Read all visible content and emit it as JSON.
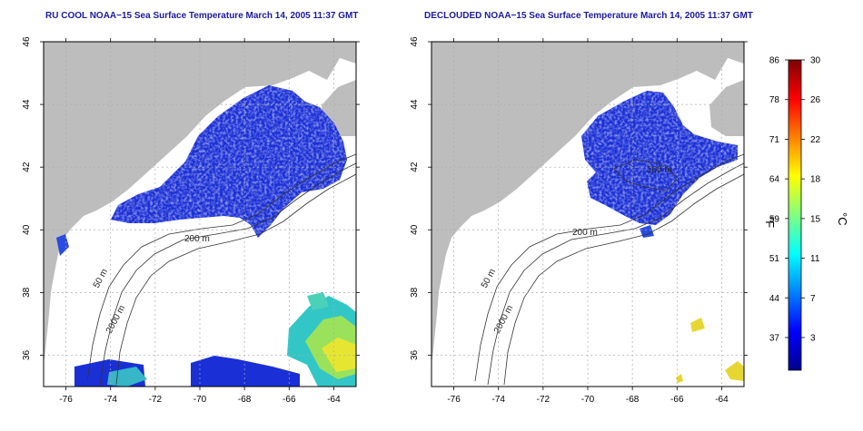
{
  "panels": [
    {
      "title": "RU COOL NOAA−15 Sea Surface Temperature March 14, 2005 11:37 GMT",
      "contour_labels": [
        "200 m",
        "50 m",
        "2000 m"
      ]
    },
    {
      "title": "DECLOUDED NOAA−15 Sea Surface Temperature March 14, 2005 11:37 GMT",
      "contour_labels": [
        "200 m",
        "100 m",
        "50 m",
        "2000 m"
      ]
    }
  ],
  "colorbar": {
    "fahrenheit_label": "°F",
    "celsius_label": "°C",
    "fahrenheit_ticks": [
      "86",
      "78",
      "71",
      "64",
      "59",
      "51",
      "44",
      "37"
    ],
    "celsius_ticks": [
      "30",
      "26",
      "22",
      "18",
      "15",
      "11",
      "7",
      "3"
    ],
    "colors": [
      "#00008f",
      "#0000ff",
      "#0080ff",
      "#00ffff",
      "#80ff80",
      "#ffff00",
      "#ff8000",
      "#ff0000",
      "#800000"
    ]
  },
  "colors": {
    "land": "#bdbdbd",
    "ocean_clear": "#ffffff",
    "sst_cold": "#1a2fd6",
    "title": "#1a1aa0"
  },
  "chart_data": [
    {
      "type": "heatmap",
      "title": "RU COOL NOAA−15 Sea Surface Temperature March 14, 2005 11:37 GMT",
      "x_ticks": [
        "-76",
        "-74",
        "-72",
        "-70",
        "-68",
        "-66",
        "-64"
      ],
      "y_ticks": [
        "36",
        "38",
        "40",
        "42",
        "44",
        "46"
      ],
      "xlim": [
        -77,
        -63
      ],
      "ylim": [
        35,
        46
      ],
      "grid": true,
      "units": [
        "°F",
        "°C"
      ]
    },
    {
      "type": "heatmap",
      "title": "DECLOUDED NOAA−15 Sea Surface Temperature March 14, 2005 11:37 GMT",
      "x_ticks": [
        "-76",
        "-74",
        "-72",
        "-70",
        "-68",
        "-66",
        "-64"
      ],
      "y_ticks": [
        "36",
        "38",
        "40",
        "42",
        "44",
        "46"
      ],
      "xlim": [
        -77,
        -63
      ],
      "ylim": [
        35,
        46
      ],
      "grid": true,
      "units": [
        "°F",
        "°C"
      ]
    }
  ]
}
